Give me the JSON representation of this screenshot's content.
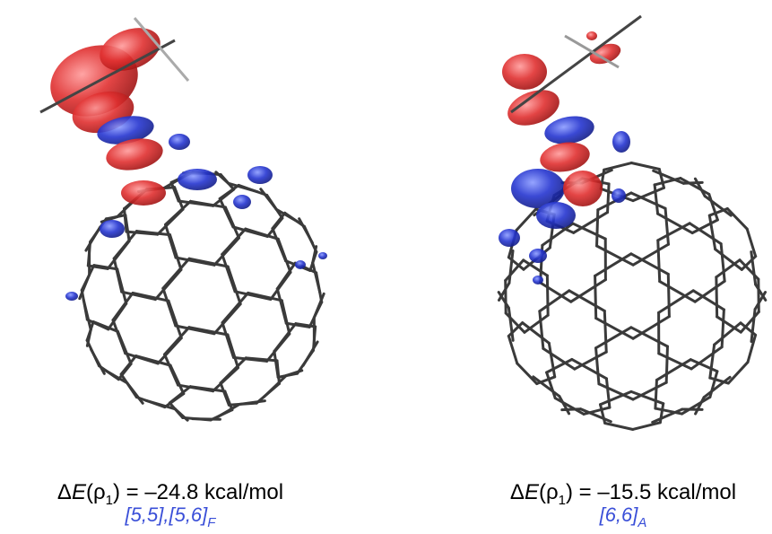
{
  "panels": [
    {
      "caption": {
        "delta": "Δ",
        "symbol": "E",
        "arg_open": "(ρ",
        "arg_sub": "1",
        "rest": ") = –24.8 kcal/mol"
      },
      "site": {
        "text": "[5,5],[5,6]",
        "sub": "F"
      }
    },
    {
      "caption": {
        "delta": "Δ",
        "symbol": "E",
        "arg_open": "(ρ",
        "arg_sub": "1",
        "rest": ") = –15.5 kcal/mol"
      },
      "site": {
        "text": "[6,6]",
        "sub": "A"
      }
    }
  ]
}
